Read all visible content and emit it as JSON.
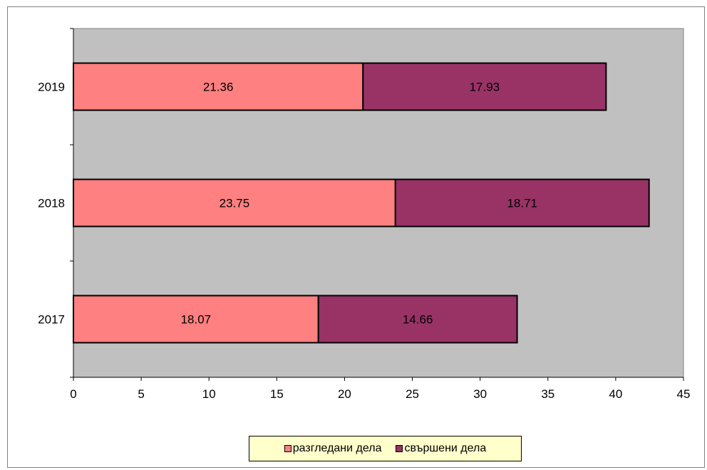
{
  "chart_data": {
    "type": "bar",
    "orientation": "horizontal",
    "stacked": true,
    "categories": [
      "2017",
      "2018",
      "2019"
    ],
    "series": [
      {
        "name": "разгледани дела",
        "values": [
          18.07,
          23.75,
          21.36
        ],
        "labels": [
          "18.07",
          "23.75",
          "21.36"
        ],
        "color": "#ff8080"
      },
      {
        "name": "свършени дела",
        "values": [
          14.66,
          18.71,
          17.93
        ],
        "labels": [
          "14.66",
          "18.71",
          "17.93"
        ],
        "color": "#993366"
      }
    ],
    "xlim": [
      0,
      45
    ],
    "x_ticks": [
      "0",
      "5",
      "10",
      "15",
      "20",
      "25",
      "30",
      "35",
      "40",
      "45"
    ],
    "plot_background": "#c0c0c0",
    "legend_background": "#ffffcc",
    "grid": false,
    "legend_position": "bottom"
  }
}
